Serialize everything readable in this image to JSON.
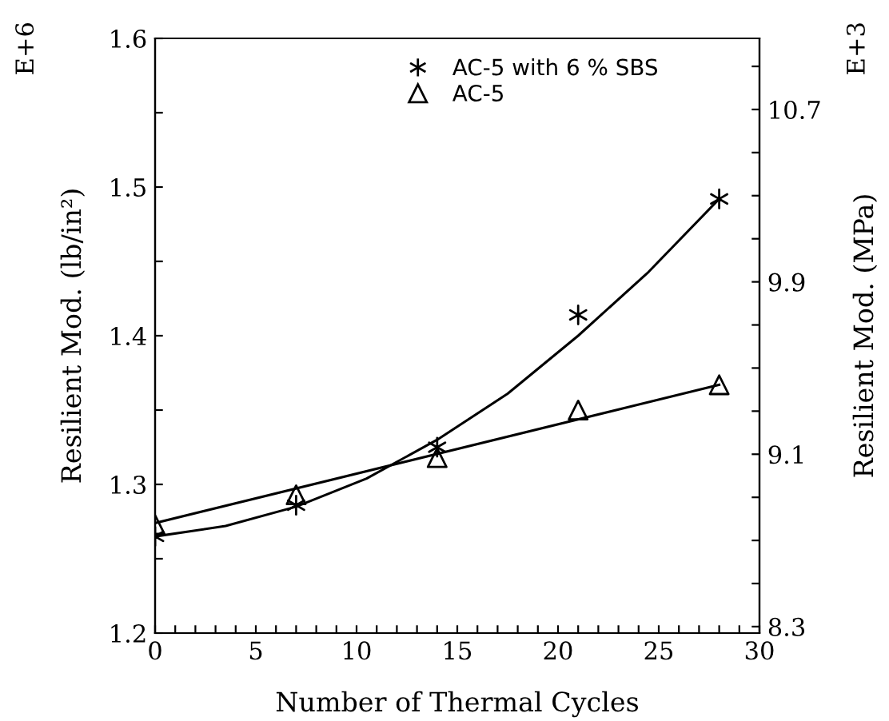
{
  "chart_data": {
    "type": "scatter",
    "xlabel": "Number of Thermal Cycles",
    "ylabel": "Resilient Mod. (lb/in²)",
    "y2label": "Resilient Mod. (MPa)",
    "annotations": [
      "E+6",
      "E+3"
    ],
    "xlim": [
      0,
      30
    ],
    "ylim": [
      1.2,
      1.6
    ],
    "y2lim": [
      8.27,
      11.03
    ],
    "xticks": [
      0,
      {
        "value": 1,
        "label": null
      },
      {
        "value": 2,
        "label": null
      },
      {
        "value": 3,
        "label": null
      },
      {
        "value": 4,
        "label": null
      },
      5,
      {
        "value": 6,
        "label": null
      },
      {
        "value": 7,
        "label": null
      },
      {
        "value": 8,
        "label": null
      },
      {
        "value": 9,
        "label": null
      },
      10,
      {
        "value": 11,
        "label": null
      },
      {
        "value": 12,
        "label": null
      },
      {
        "value": 13,
        "label": null
      },
      {
        "value": 14,
        "label": null
      },
      15,
      {
        "value": 16,
        "label": null
      },
      {
        "value": 17,
        "label": null
      },
      {
        "value": 18,
        "label": null
      },
      {
        "value": 19,
        "label": null
      },
      20,
      {
        "value": 21,
        "label": null
      },
      {
        "value": 22,
        "label": null
      },
      {
        "value": 23,
        "label": null
      },
      {
        "value": 24,
        "label": null
      },
      25,
      {
        "value": 26,
        "label": null
      },
      {
        "value": 27,
        "label": null
      },
      {
        "value": 28,
        "label": null
      },
      {
        "value": 29,
        "label": null
      },
      30
    ],
    "yticks": [
      1.2,
      {
        "value": 1.25,
        "label": null
      },
      1.3,
      {
        "value": 1.35,
        "label": null
      },
      1.4,
      {
        "value": 1.45,
        "label": null
      },
      1.5,
      {
        "value": 1.55,
        "label": null
      },
      1.6
    ],
    "y2ticks": [
      8.3,
      {
        "value": 8.5,
        "label": null
      },
      {
        "value": 8.7,
        "label": null
      },
      {
        "value": 8.9,
        "label": null
      },
      9.1,
      {
        "value": 9.3,
        "label": null
      },
      {
        "value": 9.5,
        "label": null
      },
      {
        "value": 9.7,
        "label": null
      },
      9.9,
      {
        "value": 10.1,
        "label": null
      },
      {
        "value": 10.3,
        "label": null
      },
      {
        "value": 10.5,
        "label": null
      },
      10.7,
      {
        "value": 10.9,
        "label": null
      }
    ],
    "grid": false,
    "legend": "top",
    "series": [
      {
        "name": "AC-5 with 6 % SBS",
        "color": "#000000",
        "marker": "cross",
        "x": [
          0,
          7,
          14,
          21,
          28
        ],
        "values": [
          1.265,
          1.286,
          1.325,
          1.414,
          1.492
        ]
      },
      {
        "name": "AC-5",
        "color": "#000000",
        "marker": "triangle",
        "x": [
          0,
          7,
          14,
          21,
          28
        ],
        "values": [
          1.273,
          1.293,
          1.318,
          1.35,
          1.367
        ]
      },
      {
        "type": "line",
        "color": "#000000",
        "marker": "none",
        "line_style": "solid",
        "x": [
          0,
          3.5,
          7,
          10.5,
          14,
          17.5,
          21,
          24.5,
          28
        ],
        "values": [
          1.265,
          1.272,
          1.285,
          1.304,
          1.33,
          1.361,
          1.4,
          1.443,
          1.492
        ]
      },
      {
        "type": "line",
        "color": "#000000",
        "marker": "none",
        "line_style": "solid",
        "x": [
          0,
          28
        ],
        "values": [
          1.274,
          1.367
        ]
      }
    ]
  }
}
